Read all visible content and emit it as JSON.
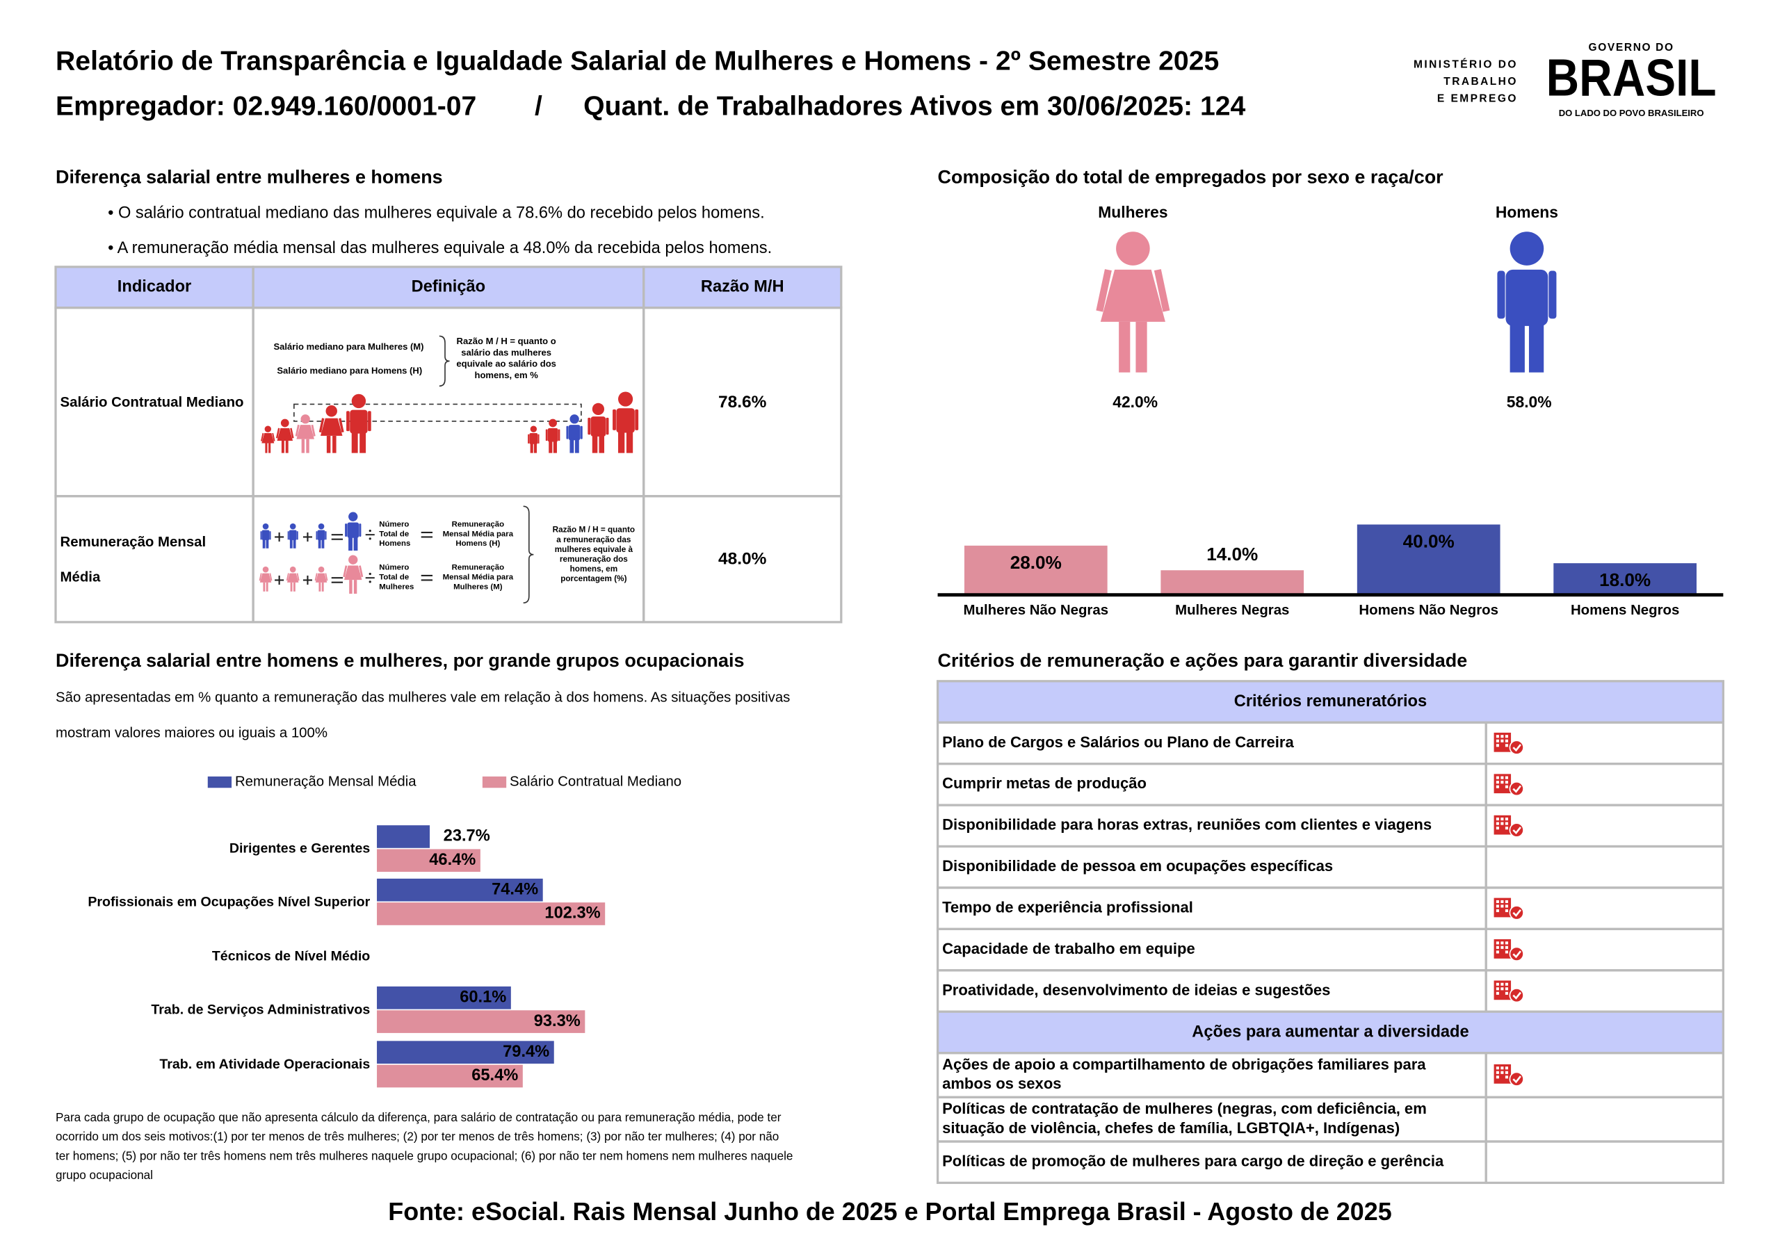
{
  "header": {
    "title": "Relatório de Transparência e Igualdade Salarial de Mulheres e Homens - 2º Semestre 2025",
    "employer": "Empregador: 02.949.160/0001-07",
    "separator": "/",
    "workers": "Quant. de Trabalhadores Ativos em 30/06/2025: 124"
  },
  "logos": {
    "ministry": [
      "MINISTÉRIO DO",
      "TRABALHO",
      "E EMPREGO"
    ],
    "government": {
      "top": "GOVERNO DO",
      "name": "BRASIL",
      "tagline": "DO LADO DO POVO BRASILEIRO"
    }
  },
  "salary_gap": {
    "heading": "Diferença salarial entre mulheres e homens",
    "bullets": [
      "• O salário contratual mediano das mulheres equivale a 78.6% do recebido pelos homens.",
      "• A remuneração média mensal das mulheres equivale a 48.0% da recebida pelos homens."
    ],
    "table": {
      "headers": [
        "Indicador",
        "Definição",
        "Razão M/H"
      ],
      "rows": [
        {
          "indicator": [
            "Salário Contratual Mediano"
          ],
          "definition": {
            "labels": [
              "Salário mediano para Mulheres (M)",
              "Salário mediano para Homens (H)"
            ],
            "note": [
              "Razão M / H = quanto o",
              "salário das mulheres",
              "equivale ao salário dos",
              "homens, em %"
            ]
          },
          "ratio": "78.6%"
        },
        {
          "indicator": [
            "Remuneração Mensal",
            "Média"
          ],
          "definition": {
            "men_count": [
              "Número",
              "Total de",
              "Homens"
            ],
            "men_pay": [
              "Remuneração",
              "Mensal Média para",
              "Homens (H)"
            ],
            "women_count": [
              "Número",
              "Total de",
              "Mulheres"
            ],
            "women_pay": [
              "Remuneração",
              "Mensal Média para",
              "Mulheres (M)"
            ],
            "note": [
              "Razão M / H = quanto",
              "a remuneração das",
              "mulheres equivale à",
              "remuneração dos",
              "homens, em",
              "porcentagem (%)"
            ]
          },
          "ratio": "48.0%"
        }
      ]
    }
  },
  "composition": {
    "heading": "Composição do total de empregados por sexo e raça/cor",
    "genders": [
      {
        "label": "Mulheres",
        "share": "42.0%",
        "color": "#e8899a"
      },
      {
        "label": "Homens",
        "share": "58.0%",
        "color": "#3a4fc0"
      }
    ]
  },
  "chart_data": [
    {
      "type": "bar",
      "categories": [
        "Mulheres Não Negras",
        "Mulheres Negras",
        "Homens Não Negros",
        "Homens Negros"
      ],
      "values": [
        28.0,
        14.0,
        40.0,
        18.0
      ],
      "value_labels": [
        "28.0%",
        "14.0%",
        "40.0%",
        "18.0%"
      ],
      "colors": [
        "#df8f9c",
        "#df8f9c",
        "#4352a8",
        "#4352a8"
      ]
    },
    {
      "type": "hbar",
      "categories": [
        "Dirigentes e Gerentes",
        "Profissionais em Ocupações Nível Superior",
        "Técnicos de Nível Médio",
        "Trab. de Serviços Administrativos",
        "Trab. em Atividade Operacionais"
      ],
      "series": [
        {
          "name": "Remuneração Mensal Média",
          "color": "#4352a8",
          "values": [
            23.7,
            74.4,
            null,
            60.1,
            79.4
          ],
          "value_labels": [
            "23.7%",
            "74.4%",
            null,
            "60.1%",
            "79.4%"
          ]
        },
        {
          "name": "Salário Contratual Mediano",
          "color": "#df8f9c",
          "values": [
            46.4,
            102.3,
            null,
            93.3,
            65.4
          ],
          "value_labels": [
            "46.4%",
            "102.3%",
            null,
            "93.3%",
            "65.4%"
          ]
        }
      ]
    }
  ],
  "occupational": {
    "heading": "Diferença salarial entre homens e mulheres, por grande grupos ocupacionais",
    "description": [
      "São apresentadas em % quanto a remuneração das mulheres vale em relação à dos homens. As situações positivas",
      "mostram valores maiores ou iguais a 100%"
    ],
    "footnote": [
      "Para cada grupo de ocupação que não apresenta cálculo da diferença, para salário de contratação ou para remuneração média, pode ter",
      "ocorrido um dos seis motivos:(1) por ter menos de três mulheres; (2) por ter menos de três homens; (3) por não ter mulheres; (4) por não",
      "ter homens; (5) por não ter três homens nem três mulheres naquele grupo ocupacional; (6) por não ter nem homens nem mulheres naquele",
      "grupo ocupacional"
    ]
  },
  "criteria": {
    "heading": "Critérios de remuneração e ações para garantir diversidade",
    "sections": [
      {
        "title": "Critérios remuneratórios",
        "rows": [
          {
            "lines": [
              "Plano de Cargos e Salários ou Plano de Carreira"
            ],
            "checked": true
          },
          {
            "lines": [
              "Cumprir metas de produção"
            ],
            "checked": true
          },
          {
            "lines": [
              "Disponibilidade para horas extras, reuniões com clientes e viagens"
            ],
            "checked": true
          },
          {
            "lines": [
              "Disponibilidade de pessoa em ocupações específicas"
            ],
            "checked": false
          },
          {
            "lines": [
              "Tempo de experiência profissional"
            ],
            "checked": true
          },
          {
            "lines": [
              "Capacidade de trabalho em equipe"
            ],
            "checked": true
          },
          {
            "lines": [
              "Proatividade, desenvolvimento de ideias e sugestões"
            ],
            "checked": true
          }
        ]
      },
      {
        "title": "Ações para aumentar a diversidade",
        "rows": [
          {
            "lines": [
              "Ações de apoio a compartilhamento de obrigações familiares para",
              "ambos os sexos"
            ],
            "checked": true
          },
          {
            "lines": [
              "Políticas de contratação de mulheres (negras, com deficiência, em",
              "situação de violência, chefes de família, LGBTQIA+, Indígenas)"
            ],
            "checked": false
          },
          {
            "lines": [
              "Políticas de promoção de mulheres para cargo de direção e gerência"
            ],
            "checked": false
          }
        ]
      }
    ]
  },
  "footer": {
    "source": "Fonte: eSocial. Rais Mensal Junho de 2025 e Portal Emprega Brasil - Agosto de 2025"
  }
}
